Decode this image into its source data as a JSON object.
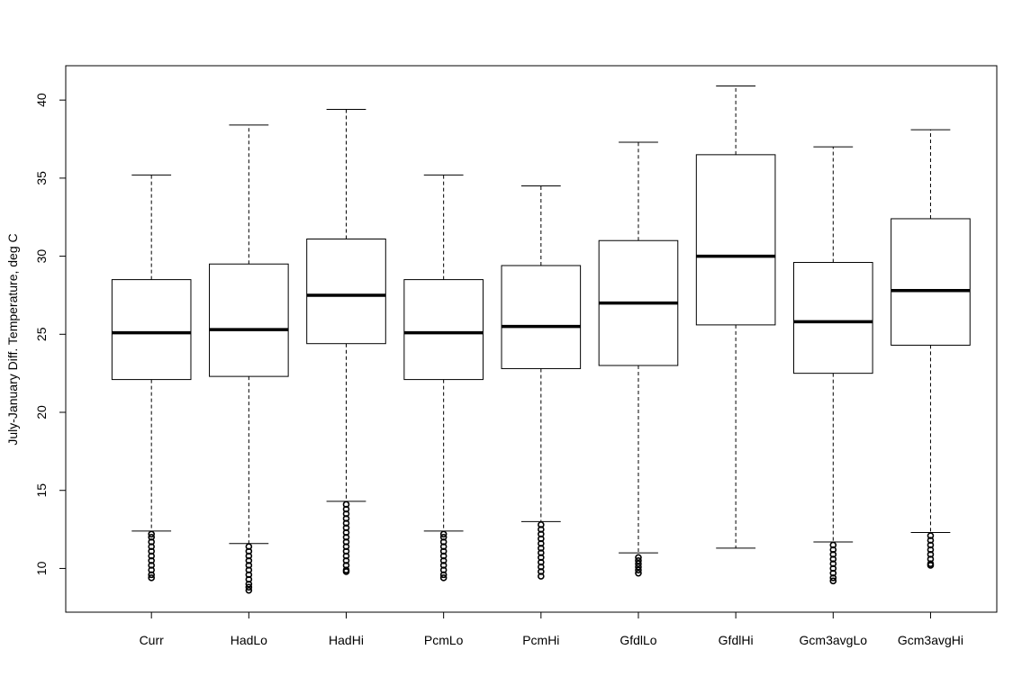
{
  "chart_data": {
    "type": "boxplot",
    "title": "",
    "xlabel": "",
    "ylabel": "July-January Diff. Temperature, deg C",
    "ylim": [
      7.2,
      42.2
    ],
    "yticks": [
      10,
      15,
      20,
      25,
      30,
      35,
      40
    ],
    "grid": false,
    "legend": "none",
    "categories": [
      "Curr",
      "HadLo",
      "HadHi",
      "PcmLo",
      "PcmHi",
      "GfdlLo",
      "GfdlHi",
      "Gcm3avgLo",
      "Gcm3avgHi"
    ],
    "boxes": [
      {
        "label": "Curr",
        "whisker_low": 12.4,
        "q1": 22.1,
        "median": 25.1,
        "q3": 28.5,
        "whisker_high": 35.2,
        "outliers": [
          12.2,
          12.0,
          11.7,
          11.4,
          11.1,
          10.8,
          10.5,
          10.2,
          9.9,
          9.6,
          9.4
        ]
      },
      {
        "label": "HadLo",
        "whisker_low": 11.6,
        "q1": 22.3,
        "median": 25.3,
        "q3": 29.5,
        "whisker_high": 38.4,
        "outliers": [
          11.4,
          11.1,
          10.8,
          10.5,
          10.2,
          9.9,
          9.6,
          9.3,
          9.0,
          8.8,
          8.6
        ]
      },
      {
        "label": "HadHi",
        "whisker_low": 14.3,
        "q1": 24.4,
        "median": 27.5,
        "q3": 31.1,
        "whisker_high": 39.4,
        "outliers": [
          14.1,
          13.8,
          13.5,
          13.2,
          12.9,
          12.6,
          12.3,
          12.0,
          11.7,
          11.4,
          11.1,
          10.8,
          10.5,
          10.2,
          9.9,
          9.8
        ]
      },
      {
        "label": "PcmLo",
        "whisker_low": 12.4,
        "q1": 22.1,
        "median": 25.1,
        "q3": 28.5,
        "whisker_high": 35.2,
        "outliers": [
          12.2,
          12.0,
          11.7,
          11.4,
          11.1,
          10.8,
          10.5,
          10.2,
          9.9,
          9.6,
          9.4
        ]
      },
      {
        "label": "PcmHi",
        "whisker_low": 13.0,
        "q1": 22.8,
        "median": 25.5,
        "q3": 29.4,
        "whisker_high": 34.5,
        "outliers": [
          12.8,
          12.5,
          12.2,
          11.9,
          11.6,
          11.3,
          11.0,
          10.7,
          10.4,
          10.1,
          9.8,
          9.5
        ]
      },
      {
        "label": "GfdlLo",
        "whisker_low": 11.0,
        "q1": 23.0,
        "median": 27.0,
        "q3": 31.0,
        "whisker_high": 37.3,
        "outliers": [
          10.7,
          10.5,
          10.3,
          10.1,
          9.9,
          9.7
        ]
      },
      {
        "label": "GfdlHi",
        "whisker_low": 11.3,
        "q1": 25.6,
        "median": 30.0,
        "q3": 36.5,
        "whisker_high": 40.9,
        "outliers": []
      },
      {
        "label": "Gcm3avgLo",
        "whisker_low": 11.7,
        "q1": 22.5,
        "median": 25.8,
        "q3": 29.6,
        "whisker_high": 37.0,
        "outliers": [
          11.5,
          11.2,
          10.9,
          10.6,
          10.3,
          10.0,
          9.7,
          9.4,
          9.2
        ]
      },
      {
        "label": "Gcm3avgHi",
        "whisker_low": 12.3,
        "q1": 24.3,
        "median": 27.8,
        "q3": 32.4,
        "whisker_high": 38.1,
        "outliers": [
          12.1,
          11.8,
          11.5,
          11.2,
          10.9,
          10.6,
          10.3,
          10.2
        ]
      }
    ]
  }
}
